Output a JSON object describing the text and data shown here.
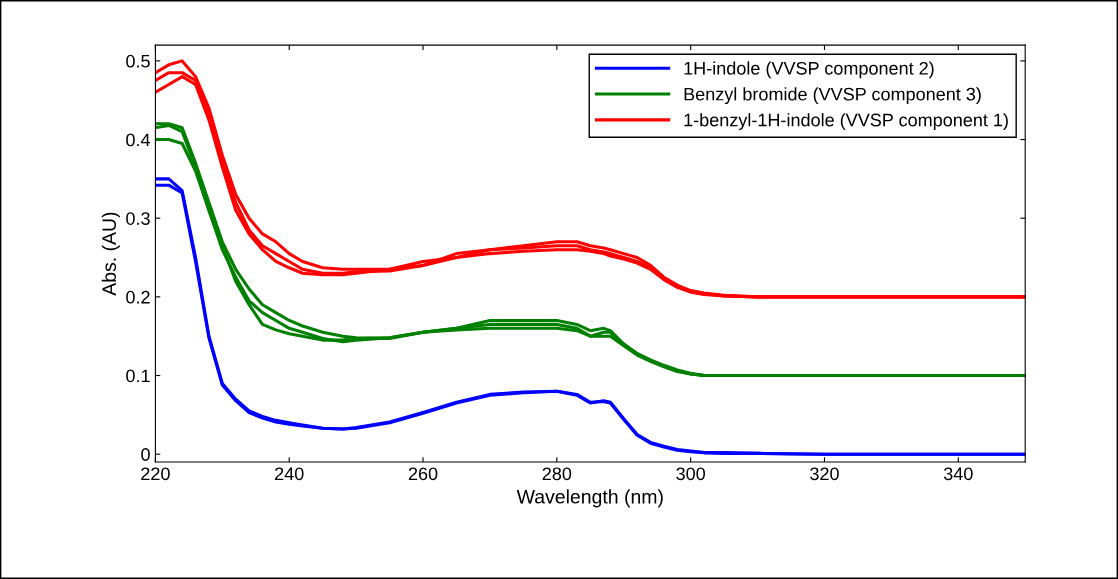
{
  "chart_data": {
    "type": "line",
    "xlabel": "Wavelength (nm)",
    "ylabel": "Abs. (AU)",
    "x": [
      220,
      222,
      224,
      226,
      228,
      230,
      232,
      234,
      236,
      238,
      240,
      242,
      245,
      248,
      250,
      255,
      260,
      265,
      270,
      275,
      280,
      283,
      285,
      287,
      288,
      290,
      292,
      294,
      296,
      298,
      300,
      302,
      305,
      310,
      320,
      330,
      340,
      350
    ],
    "series": [
      {
        "name": "1H-indole (VVSP component 2)",
        "color": "#0000ff",
        "values": [
          0.35,
          0.35,
          0.335,
          0.25,
          0.15,
          0.09,
          0.07,
          0.055,
          0.048,
          0.043,
          0.04,
          0.037,
          0.033,
          0.032,
          0.033,
          0.04,
          0.052,
          0.065,
          0.075,
          0.078,
          0.08,
          0.075,
          0.065,
          0.068,
          0.066,
          0.045,
          0.025,
          0.015,
          0.01,
          0.006,
          0.004,
          0.002,
          0.002,
          0.001,
          0,
          0,
          0,
          0
        ]
      },
      {
        "color": "#0000ff",
        "values": [
          0.342,
          0.342,
          0.332,
          0.245,
          0.148,
          0.088,
          0.068,
          0.053,
          0.046,
          0.041,
          0.038,
          0.036,
          0.033,
          0.032,
          0.034,
          0.041,
          0.053,
          0.066,
          0.076,
          0.079,
          0.08,
          0.076,
          0.066,
          0.067,
          0.065,
          0.044,
          0.024,
          0.014,
          0.009,
          0.005,
          0.003,
          0.002,
          0.001,
          0.001,
          0,
          0,
          0,
          0
        ]
      },
      {
        "name": "Benzyl bromide (VVSP component 3)",
        "color": "#008000",
        "values": [
          0.42,
          0.42,
          0.415,
          0.37,
          0.32,
          0.27,
          0.235,
          0.21,
          0.19,
          0.18,
          0.17,
          0.163,
          0.155,
          0.15,
          0.148,
          0.147,
          0.155,
          0.16,
          0.17,
          0.17,
          0.17,
          0.165,
          0.157,
          0.16,
          0.157,
          0.14,
          0.128,
          0.12,
          0.113,
          0.107,
          0.103,
          0.1,
          0.1,
          0.1,
          0.1,
          0.1,
          0.1,
          0.1
        ]
      },
      {
        "color": "#008000",
        "values": [
          0.415,
          0.418,
          0.41,
          0.365,
          0.31,
          0.26,
          0.225,
          0.195,
          0.18,
          0.17,
          0.16,
          0.155,
          0.147,
          0.143,
          0.145,
          0.148,
          0.155,
          0.16,
          0.165,
          0.165,
          0.165,
          0.16,
          0.15,
          0.155,
          0.155,
          0.14,
          0.127,
          0.119,
          0.112,
          0.106,
          0.102,
          0.1,
          0.1,
          0.1,
          0.1,
          0.1,
          0.1,
          0.1
        ]
      },
      {
        "color": "#008000",
        "values": [
          0.4,
          0.4,
          0.395,
          0.36,
          0.31,
          0.265,
          0.22,
          0.19,
          0.165,
          0.158,
          0.153,
          0.15,
          0.145,
          0.145,
          0.147,
          0.148,
          0.155,
          0.158,
          0.16,
          0.16,
          0.16,
          0.157,
          0.15,
          0.15,
          0.15,
          0.138,
          0.126,
          0.118,
          0.111,
          0.105,
          0.102,
          0.1,
          0.1,
          0.1,
          0.1,
          0.1,
          0.1,
          0.1
        ]
      },
      {
        "name": "1-benzyl-1H-indole (VVSP component 1)",
        "color": "#ff0000",
        "values": [
          0.485,
          0.495,
          0.5,
          0.48,
          0.44,
          0.38,
          0.33,
          0.3,
          0.28,
          0.27,
          0.255,
          0.245,
          0.237,
          0.235,
          0.235,
          0.235,
          0.24,
          0.255,
          0.26,
          0.265,
          0.27,
          0.27,
          0.265,
          0.262,
          0.26,
          0.255,
          0.25,
          0.24,
          0.225,
          0.215,
          0.208,
          0.205,
          0.202,
          0.2,
          0.2,
          0.2,
          0.2,
          0.2
        ]
      },
      {
        "color": "#ff0000",
        "values": [
          0.475,
          0.485,
          0.485,
          0.475,
          0.43,
          0.37,
          0.32,
          0.285,
          0.265,
          0.255,
          0.245,
          0.235,
          0.23,
          0.23,
          0.232,
          0.233,
          0.24,
          0.25,
          0.26,
          0.262,
          0.265,
          0.265,
          0.26,
          0.257,
          0.255,
          0.25,
          0.245,
          0.237,
          0.223,
          0.213,
          0.207,
          0.204,
          0.201,
          0.2,
          0.2,
          0.2,
          0.2,
          0.2
        ]
      },
      {
        "color": "#ff0000",
        "values": [
          0.46,
          0.47,
          0.48,
          0.47,
          0.425,
          0.365,
          0.31,
          0.28,
          0.26,
          0.245,
          0.237,
          0.23,
          0.228,
          0.228,
          0.23,
          0.235,
          0.245,
          0.25,
          0.255,
          0.258,
          0.26,
          0.26,
          0.258,
          0.255,
          0.252,
          0.248,
          0.243,
          0.235,
          0.222,
          0.212,
          0.206,
          0.203,
          0.201,
          0.2,
          0.2,
          0.2,
          0.2,
          0.2
        ]
      }
    ],
    "xlim": [
      220,
      350
    ],
    "xticks": [
      220,
      240,
      260,
      280,
      300,
      320,
      340
    ],
    "ylim": [
      -0.01,
      0.52
    ],
    "yticks": [
      0,
      0.1,
      0.2,
      0.3,
      0.4,
      0.5
    ],
    "grid": false,
    "legend": "top right"
  }
}
